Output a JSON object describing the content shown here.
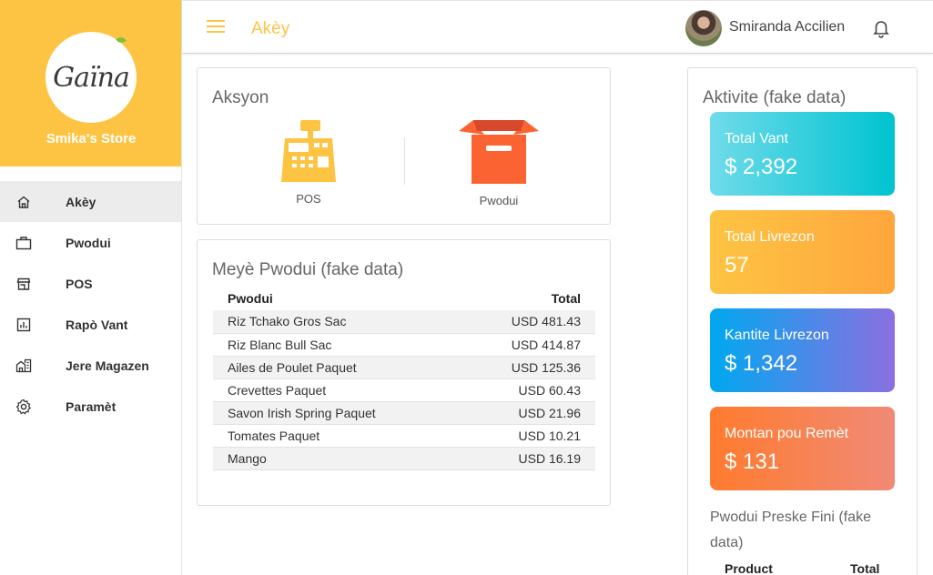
{
  "sidebar": {
    "logo_text": "Gaïna",
    "store_name": "Smika's Store",
    "items": [
      {
        "label": "Akèy",
        "icon": "home-icon"
      },
      {
        "label": "Pwodui",
        "icon": "briefcase-icon"
      },
      {
        "label": "POS",
        "icon": "store-icon"
      },
      {
        "label": "Rapò Vant",
        "icon": "report-icon"
      },
      {
        "label": "Jere Magazen",
        "icon": "buildings-icon"
      },
      {
        "label": "Paramèt",
        "icon": "gear-icon"
      }
    ]
  },
  "header": {
    "title": "Akèy",
    "user_name": "Smiranda Accilien"
  },
  "actions": {
    "title": "Aksyon",
    "items": [
      {
        "label": "POS",
        "icon": "cash-register-icon"
      },
      {
        "label": "Pwodui",
        "icon": "box-icon"
      }
    ]
  },
  "top_products": {
    "title": "Meyè Pwodui (fake data)",
    "columns": [
      "Pwodui",
      "Total"
    ],
    "rows": [
      {
        "name": "Riz Tchako Gros Sac",
        "total": "USD 481.43"
      },
      {
        "name": "Riz Blanc Bull Sac",
        "total": "USD 414.87"
      },
      {
        "name": "Ailes de Poulet Paquet",
        "total": "USD 125.36"
      },
      {
        "name": "Crevettes Paquet",
        "total": "USD 60.43"
      },
      {
        "name": "Savon Irish Spring Paquet",
        "total": "USD 21.96"
      },
      {
        "name": "Tomates Paquet",
        "total": "USD 10.21"
      },
      {
        "name": "Mango",
        "total": "USD 16.19"
      }
    ]
  },
  "activity": {
    "title": "Aktivite (fake data)",
    "stats": [
      {
        "label": "Total Vant",
        "value": "$ 2,392"
      },
      {
        "label": "Total Livrezon",
        "value": "57"
      },
      {
        "label": "Kantite Livrezon",
        "value": "$ 1,342"
      },
      {
        "label": "Montan pou Remèt",
        "value": "$ 131"
      }
    ],
    "low_stock_title": "Pwodui Preske Fini (fake data)",
    "low_stock_columns": [
      "Product",
      "Total"
    ]
  },
  "colors": {
    "brand_yellow": "#fdc443",
    "pos_icon": "#fdc443",
    "box_icon": "#fb6432",
    "stat1_gradient": [
      "#6fdbea",
      "#00c3d0"
    ],
    "stat2_gradient": [
      "#fdc443",
      "#ffa63d"
    ],
    "stat3_gradient": [
      "#00a8f0",
      "#8b6fe0"
    ],
    "stat4_gradient": [
      "#ff7b2e",
      "#f08a76"
    ]
  }
}
